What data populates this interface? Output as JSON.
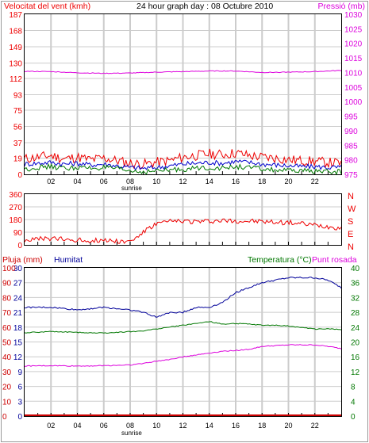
{
  "header": {
    "wind_label": "Velocitat del vent (kmh)",
    "title": "24 hour graph day : 08 Octubre 2010",
    "pressure_label": "Pressió (mb)"
  },
  "colors": {
    "gust": "#ee0000",
    "wind": "#0000cc",
    "avg": "#007700",
    "pressure": "#dd00dd",
    "direction": "#ee0000",
    "rain": "#cc0000",
    "humidity": "#000099",
    "temperature": "#007700",
    "dewpoint": "#dd00dd",
    "grid": "#cccccc",
    "text_main": "#000000"
  },
  "x_ticks": [
    "02",
    "04",
    "06",
    "08",
    "10",
    "12",
    "14",
    "16",
    "18",
    "20",
    "22"
  ],
  "sunrise_label": "sunrise",
  "chart_data": [
    {
      "type": "line",
      "title": "24 hour graph day : 08 Octubre 2010",
      "xlim": [
        0,
        24
      ],
      "ylabel": "Velocitat del vent (kmh)",
      "ylabel_right": "Pressió (mb)",
      "ylim": [
        0,
        187
      ],
      "ylim_right": [
        975,
        1030
      ],
      "y_ticks": [
        0,
        19,
        37,
        56,
        75,
        93,
        112,
        130,
        149,
        168,
        187
      ],
      "y_ticks_right": [
        975,
        980,
        985,
        990,
        995,
        1000,
        1005,
        1010,
        1015,
        1020,
        1025,
        1030
      ],
      "grid": true,
      "series": [
        {
          "key": "gust",
          "axis": "left",
          "x": [
            0,
            1,
            2,
            3,
            4,
            5,
            6,
            7,
            8,
            9,
            10,
            11,
            12,
            13,
            14,
            15,
            16,
            17,
            18,
            19,
            20,
            21,
            22,
            23,
            24
          ],
          "values": [
            18,
            20,
            22,
            18,
            20,
            17,
            19,
            16,
            13,
            12,
            14,
            16,
            20,
            22,
            24,
            23,
            25,
            22,
            20,
            19,
            17,
            16,
            15,
            14,
            13
          ]
        },
        {
          "key": "wind",
          "axis": "left",
          "x": [
            0,
            1,
            2,
            3,
            4,
            5,
            6,
            7,
            8,
            9,
            10,
            11,
            12,
            13,
            14,
            15,
            16,
            17,
            18,
            19,
            20,
            21,
            22,
            23,
            24
          ],
          "values": [
            12,
            13,
            14,
            12,
            13,
            11,
            12,
            10,
            8,
            7,
            8,
            10,
            12,
            13,
            14,
            13,
            15,
            14,
            12,
            11,
            10,
            9,
            9,
            8,
            8
          ]
        },
        {
          "key": "avg",
          "axis": "left",
          "x": [
            0,
            1,
            2,
            3,
            4,
            5,
            6,
            7,
            8,
            9,
            10,
            11,
            12,
            13,
            14,
            15,
            16,
            17,
            18,
            19,
            20,
            21,
            22,
            23,
            24
          ],
          "values": [
            6,
            8,
            9,
            7,
            8,
            7,
            8,
            6,
            4,
            3,
            4,
            5,
            6,
            7,
            8,
            7,
            9,
            8,
            6,
            5,
            4,
            4,
            4,
            3,
            3
          ]
        },
        {
          "key": "pressure",
          "axis": "right",
          "x": [
            0,
            2,
            4,
            6,
            8,
            10,
            12,
            14,
            16,
            18,
            20,
            22,
            24
          ],
          "values": [
            1010.4,
            1010.3,
            1009.9,
            1009.7,
            1009.8,
            1010.1,
            1010.3,
            1010.5,
            1010.5,
            1010.0,
            1010.1,
            1010.3,
            1010.7
          ]
        }
      ]
    },
    {
      "type": "scatter",
      "ylim": [
        0,
        360
      ],
      "y_ticks": [
        0,
        90,
        180,
        270,
        360
      ],
      "right_labels": [
        "N",
        "W",
        "S",
        "E",
        "N"
      ],
      "grid": true,
      "series": [
        {
          "key": "direction",
          "x": [
            0,
            1,
            2,
            3,
            4,
            5,
            6,
            7,
            8,
            9,
            10,
            11,
            12,
            13,
            14,
            15,
            16,
            17,
            18,
            19,
            20,
            21,
            22,
            23,
            24
          ],
          "values": [
            35,
            40,
            45,
            38,
            35,
            30,
            35,
            28,
            22,
            90,
            150,
            165,
            170,
            165,
            168,
            172,
            170,
            168,
            165,
            160,
            158,
            150,
            140,
            130,
            120
          ]
        }
      ]
    },
    {
      "type": "line",
      "ylabel": "Pluja (mm)",
      "series_labels": [
        "Humitat",
        "Temperatura (°C)",
        "Punt rosada"
      ],
      "y_ticks_rain": [
        0,
        10,
        20,
        30,
        40,
        50,
        60,
        70,
        80,
        90,
        100
      ],
      "y_ticks_inner": [
        0,
        3,
        6,
        9,
        12,
        15,
        18,
        21,
        24,
        27,
        30
      ],
      "y_ticks_right": [
        0,
        4,
        8,
        12,
        16,
        20,
        24,
        28,
        32,
        36,
        40
      ],
      "ylim_left": [
        0,
        30
      ],
      "ylim_right": [
        0,
        40
      ],
      "grid": true,
      "series": [
        {
          "key": "rain",
          "axis": "left",
          "x": [
            0,
            24
          ],
          "values": [
            0,
            0
          ]
        },
        {
          "key": "humidity",
          "axis": "left",
          "x": [
            0,
            2,
            4,
            6,
            8,
            9,
            10,
            11,
            12,
            13,
            14,
            15,
            16,
            17,
            18,
            19,
            20,
            22,
            23,
            24
          ],
          "values": [
            22,
            22,
            21.5,
            22,
            21.5,
            21,
            20,
            21,
            21,
            22,
            22,
            23,
            25,
            26,
            27,
            27.5,
            28,
            28,
            27.5,
            26
          ]
        },
        {
          "key": "temperature",
          "axis": "right",
          "x": [
            0,
            2,
            4,
            6,
            8,
            9,
            10,
            11,
            12,
            13,
            14,
            15,
            16,
            17,
            18,
            19,
            20,
            22,
            23,
            24
          ],
          "values": [
            22.5,
            22.8,
            22.6,
            22.4,
            22.8,
            23,
            23.5,
            24,
            24.5,
            25,
            25.5,
            24.8,
            25,
            24.8,
            24.5,
            24.5,
            24.3,
            23.5,
            23.5,
            23.4
          ]
        },
        {
          "key": "dewpoint",
          "axis": "right",
          "x": [
            0,
            2,
            4,
            6,
            8,
            9,
            10,
            11,
            12,
            13,
            14,
            15,
            16,
            17,
            18,
            19,
            20,
            22,
            23,
            24
          ],
          "values": [
            13.5,
            13.6,
            13.5,
            13.6,
            13.8,
            14.2,
            14.8,
            15.3,
            16,
            16.5,
            17,
            17.5,
            17.7,
            18,
            18.8,
            19,
            19.2,
            19.2,
            18.8,
            18.2
          ]
        }
      ]
    }
  ]
}
